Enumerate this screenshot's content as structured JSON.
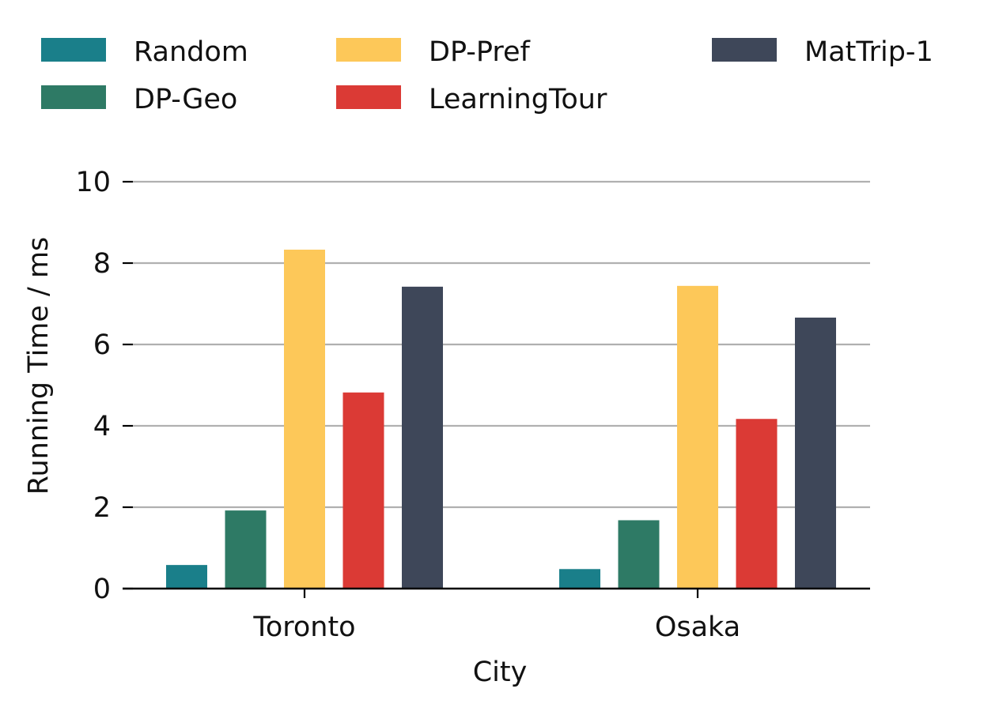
{
  "chart_data": {
    "type": "bar",
    "title": "",
    "xlabel": "City",
    "ylabel": "Running Time / ms",
    "categories": [
      "Toronto",
      "Osaka"
    ],
    "ylim": [
      0,
      10
    ],
    "yticks": [
      0,
      2,
      4,
      6,
      8,
      10
    ],
    "grid": true,
    "legend_position": "top",
    "series": [
      {
        "name": "Random",
        "color": "#1a7f8a",
        "values": [
          0.58,
          0.48
        ]
      },
      {
        "name": "DP-Geo",
        "color": "#2e7a65",
        "values": [
          1.92,
          1.68
        ]
      },
      {
        "name": "DP-Pref",
        "color": "#fdc859",
        "values": [
          8.33,
          7.44
        ]
      },
      {
        "name": "LearningTour",
        "color": "#db3a35",
        "values": [
          4.82,
          4.17
        ]
      },
      {
        "name": "MatTrip-1",
        "color": "#3e4759",
        "values": [
          7.42,
          6.66
        ]
      }
    ]
  }
}
